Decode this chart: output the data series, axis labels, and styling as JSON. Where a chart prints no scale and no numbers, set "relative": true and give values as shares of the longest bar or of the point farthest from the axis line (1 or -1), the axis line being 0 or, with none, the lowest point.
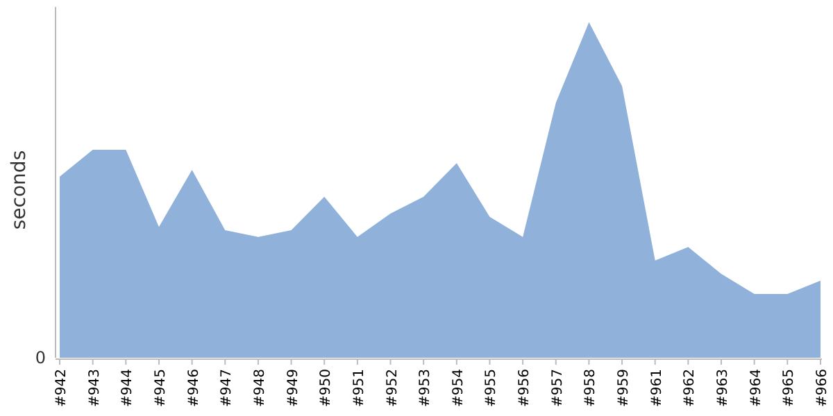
{
  "chart_data": {
    "type": "area",
    "ylabel": "seconds",
    "relative": true,
    "annotations": [
      "0"
    ],
    "categories": [
      "#942",
      "#943",
      "#944",
      "#945",
      "#946",
      "#947",
      "#948",
      "#949",
      "#950",
      "#951",
      "#952",
      "#953",
      "#954",
      "#955",
      "#956",
      "#957",
      "#958",
      "#959",
      "#961",
      "#962",
      "#963",
      "#964",
      "#965",
      "#966"
    ],
    "series": [
      {
        "color": "#8fb1da",
        "values": [
          0.54,
          0.62,
          0.62,
          0.39,
          0.56,
          0.38,
          0.36,
          0.38,
          0.48,
          0.36,
          0.43,
          0.48,
          0.58,
          0.42,
          0.36,
          0.76,
          1,
          0.81,
          0.29,
          0.33,
          0.25,
          0.19,
          0.19,
          0.23
        ]
      }
    ]
  }
}
